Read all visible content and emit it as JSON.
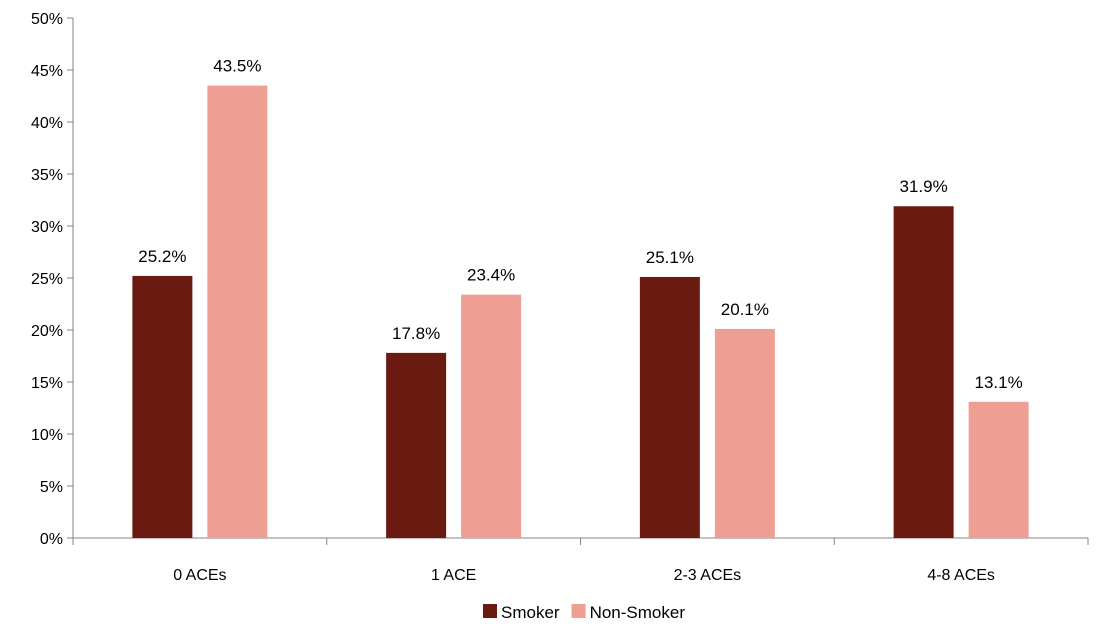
{
  "chart_data": {
    "type": "bar",
    "categories": [
      "0 ACEs",
      "1 ACE",
      "2-3 ACEs",
      "4-8 ACEs"
    ],
    "series": [
      {
        "name": "Smoker",
        "values": [
          25.2,
          17.8,
          25.1,
          31.9
        ],
        "labels": [
          "25.2%",
          "17.8%",
          "25.1%",
          "31.9%"
        ],
        "color": "#6b1a12"
      },
      {
        "name": "Non-Smoker",
        "values": [
          43.5,
          23.4,
          20.1,
          13.1
        ],
        "labels": [
          "43.5%",
          "23.4%",
          "20.1%",
          "13.1%"
        ],
        "color": "#ee9e92"
      }
    ],
    "ylim": [
      0,
      50
    ],
    "y_ticks": [
      0,
      5,
      10,
      15,
      20,
      25,
      30,
      35,
      40,
      45,
      50
    ],
    "y_tick_labels": [
      "0%",
      "5%",
      "10%",
      "15%",
      "20%",
      "25%",
      "30%",
      "35%",
      "40%",
      "45%",
      "50%"
    ],
    "grid": false,
    "legend_position": "bottom",
    "axis_color": "#868686"
  }
}
